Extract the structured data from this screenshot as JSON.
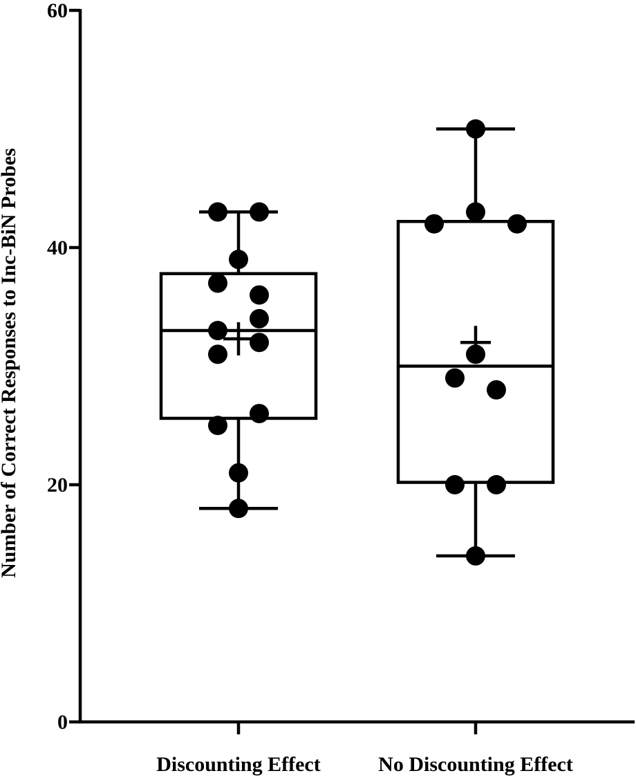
{
  "chart_data": {
    "type": "box",
    "ylabel": "Number of Correct Responses to Inc-BiN Probes",
    "ylim": [
      0,
      60
    ],
    "yticks": [
      0,
      20,
      40,
      60
    ],
    "categories": [
      "Discounting Effect",
      "No Discounting Effect"
    ],
    "boxes": [
      {
        "category": "Discounting Effect",
        "whisker_low": 18,
        "q1": 25.6,
        "median": 33,
        "q3": 37.8,
        "whisker_high": 43,
        "mean": 32.3,
        "points": [
          {
            "x": -0.5,
            "y": 43
          },
          {
            "x": 0.5,
            "y": 43
          },
          {
            "x": 0,
            "y": 39
          },
          {
            "x": -0.5,
            "y": 37
          },
          {
            "x": 0.5,
            "y": 36
          },
          {
            "x": 0.5,
            "y": 34
          },
          {
            "x": -0.5,
            "y": 33
          },
          {
            "x": 0.5,
            "y": 32
          },
          {
            "x": -0.5,
            "y": 31
          },
          {
            "x": 0.5,
            "y": 26
          },
          {
            "x": -0.5,
            "y": 25
          },
          {
            "x": 0,
            "y": 21
          },
          {
            "x": 0,
            "y": 18
          }
        ]
      },
      {
        "category": "No Discounting Effect",
        "whisker_low": 14,
        "q1": 20.2,
        "median": 30,
        "q3": 42.2,
        "whisker_high": 50,
        "mean": 32,
        "points": [
          {
            "x": 0,
            "y": 50
          },
          {
            "x": 0,
            "y": 43
          },
          {
            "x": -1,
            "y": 42
          },
          {
            "x": 1,
            "y": 42
          },
          {
            "x": 0,
            "y": 31
          },
          {
            "x": -0.5,
            "y": 29
          },
          {
            "x": 0.5,
            "y": 28
          },
          {
            "x": -0.5,
            "y": 20
          },
          {
            "x": 0.5,
            "y": 20
          },
          {
            "x": 0,
            "y": 14
          }
        ]
      }
    ]
  }
}
